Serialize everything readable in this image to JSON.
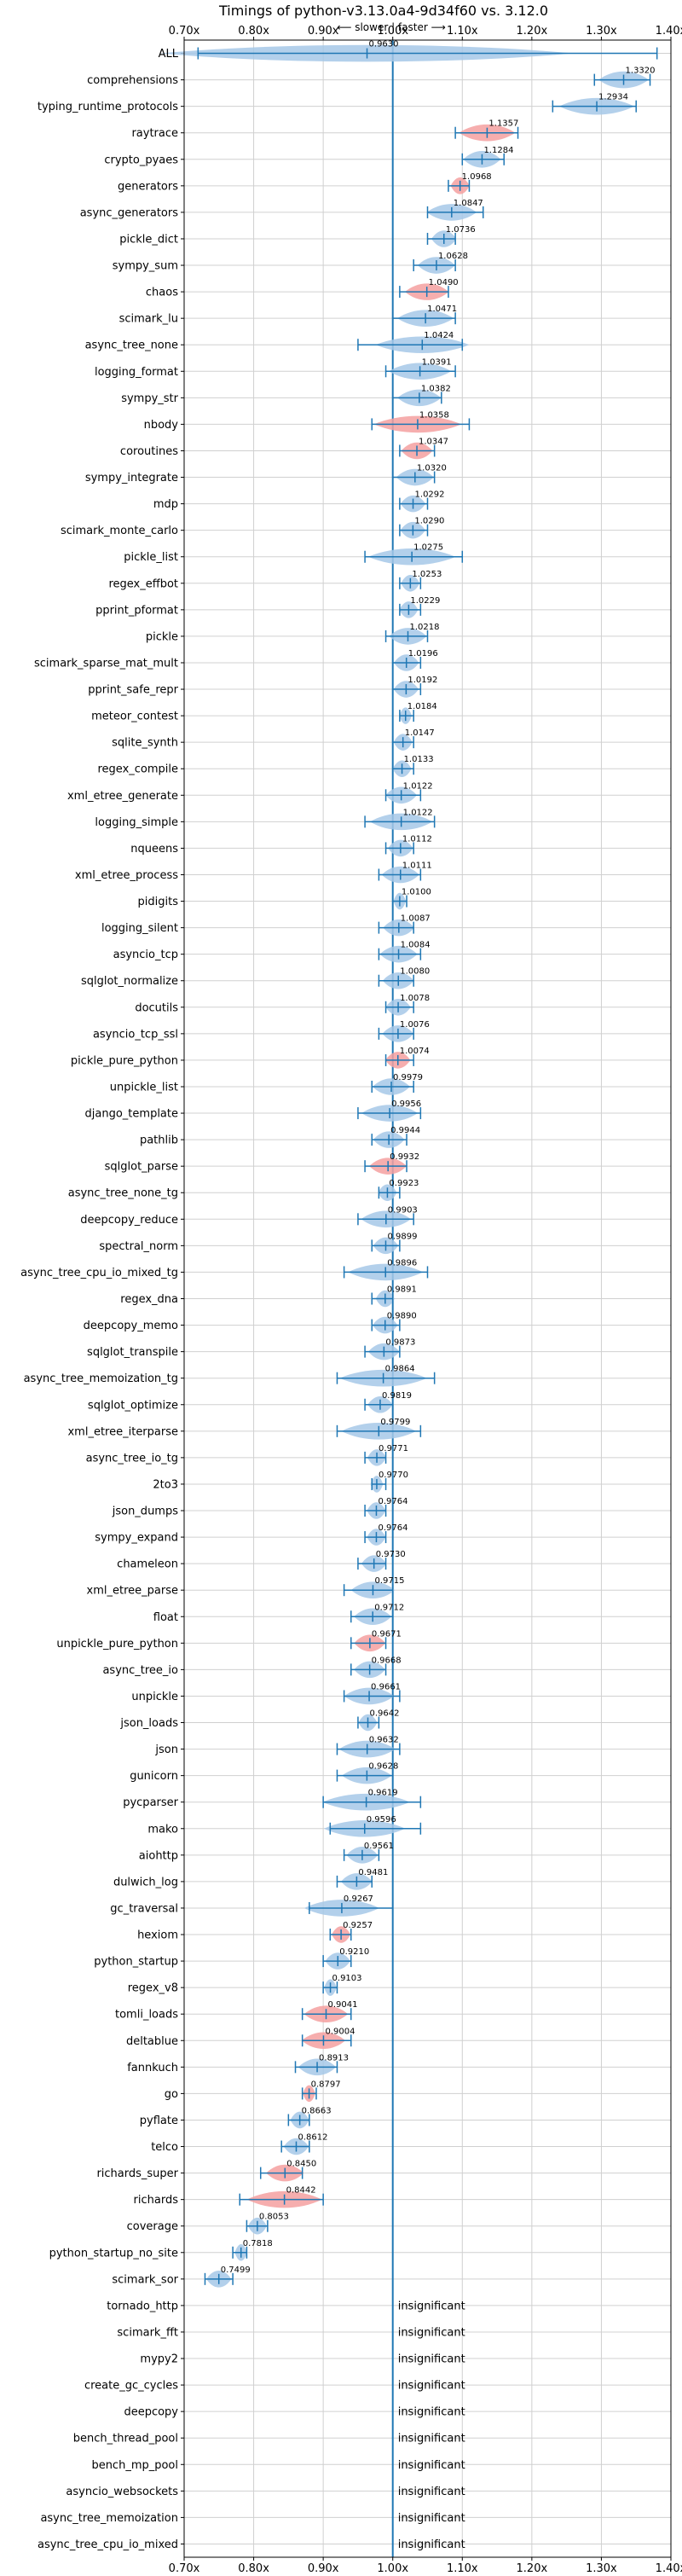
{
  "chart_data": {
    "type": "violin",
    "title": "Timings of python-v3.13.0a4-9d34f60 vs. 3.12.0",
    "direction_label": "⟵ slower | faster ⟶",
    "xlim": [
      0.7,
      1.4
    ],
    "xticks": [
      "0.70x",
      "0.80x",
      "0.90x",
      "1.00x",
      "1.10x",
      "1.20x",
      "1.30x",
      "1.40x"
    ],
    "xtick_values": [
      0.7,
      0.8,
      0.9,
      1.0,
      1.1,
      1.2,
      1.3,
      1.4
    ],
    "grid": true,
    "colors": {
      "faster": "#1f77b4",
      "slower_fill": "#f4a0a0",
      "violin_fill": "#a6c8e8",
      "reference": "#1f77b4"
    },
    "insignificant_text": "insignificant",
    "benchmarks": [
      {
        "name": "ALL",
        "value": 0.963,
        "label": "0.9630",
        "min": 0.72,
        "max": 1.38,
        "slower": false
      },
      {
        "name": "comprehensions",
        "value": 1.332,
        "label": "1.3320",
        "min": 1.29,
        "max": 1.37,
        "slower": false
      },
      {
        "name": "typing_runtime_protocols",
        "value": 1.2934,
        "label": "1.2934",
        "min": 1.23,
        "max": 1.35,
        "slower": false
      },
      {
        "name": "raytrace",
        "value": 1.1357,
        "label": "1.1357",
        "min": 1.09,
        "max": 1.18,
        "slower": true
      },
      {
        "name": "crypto_pyaes",
        "value": 1.1284,
        "label": "1.1284",
        "min": 1.1,
        "max": 1.16,
        "slower": false
      },
      {
        "name": "generators",
        "value": 1.0968,
        "label": "1.0968",
        "min": 1.08,
        "max": 1.11,
        "slower": true
      },
      {
        "name": "async_generators",
        "value": 1.0847,
        "label": "1.0847",
        "min": 1.05,
        "max": 1.13,
        "slower": false
      },
      {
        "name": "pickle_dict",
        "value": 1.0736,
        "label": "1.0736",
        "min": 1.05,
        "max": 1.09,
        "slower": false
      },
      {
        "name": "sympy_sum",
        "value": 1.0628,
        "label": "1.0628",
        "min": 1.03,
        "max": 1.09,
        "slower": false
      },
      {
        "name": "chaos",
        "value": 1.049,
        "label": "1.0490",
        "min": 1.01,
        "max": 1.08,
        "slower": true
      },
      {
        "name": "scimark_lu",
        "value": 1.0471,
        "label": "1.0471",
        "min": 1.0,
        "max": 1.09,
        "slower": false
      },
      {
        "name": "async_tree_none",
        "value": 1.0424,
        "label": "1.0424",
        "min": 0.95,
        "max": 1.1,
        "slower": false
      },
      {
        "name": "logging_format",
        "value": 1.0391,
        "label": "1.0391",
        "min": 0.99,
        "max": 1.09,
        "slower": false
      },
      {
        "name": "sympy_str",
        "value": 1.0382,
        "label": "1.0382",
        "min": 1.0,
        "max": 1.07,
        "slower": false
      },
      {
        "name": "nbody",
        "value": 1.0358,
        "label": "1.0358",
        "min": 0.97,
        "max": 1.11,
        "slower": true
      },
      {
        "name": "coroutines",
        "value": 1.0347,
        "label": "1.0347",
        "min": 1.01,
        "max": 1.06,
        "slower": true
      },
      {
        "name": "sympy_integrate",
        "value": 1.032,
        "label": "1.0320",
        "min": 1.0,
        "max": 1.06,
        "slower": false
      },
      {
        "name": "mdp",
        "value": 1.0292,
        "label": "1.0292",
        "min": 1.01,
        "max": 1.05,
        "slower": false
      },
      {
        "name": "scimark_monte_carlo",
        "value": 1.029,
        "label": "1.0290",
        "min": 1.01,
        "max": 1.05,
        "slower": false
      },
      {
        "name": "pickle_list",
        "value": 1.0275,
        "label": "1.0275",
        "min": 0.96,
        "max": 1.1,
        "slower": false
      },
      {
        "name": "regex_effbot",
        "value": 1.0253,
        "label": "1.0253",
        "min": 1.01,
        "max": 1.04,
        "slower": false
      },
      {
        "name": "pprint_pformat",
        "value": 1.0229,
        "label": "1.0229",
        "min": 1.01,
        "max": 1.04,
        "slower": false
      },
      {
        "name": "pickle",
        "value": 1.0218,
        "label": "1.0218",
        "min": 0.99,
        "max": 1.05,
        "slower": false
      },
      {
        "name": "scimark_sparse_mat_mult",
        "value": 1.0196,
        "label": "1.0196",
        "min": 1.0,
        "max": 1.04,
        "slower": false
      },
      {
        "name": "pprint_safe_repr",
        "value": 1.0192,
        "label": "1.0192",
        "min": 1.0,
        "max": 1.04,
        "slower": false
      },
      {
        "name": "meteor_contest",
        "value": 1.0184,
        "label": "1.0184",
        "min": 1.01,
        "max": 1.03,
        "slower": false
      },
      {
        "name": "sqlite_synth",
        "value": 1.0147,
        "label": "1.0147",
        "min": 1.0,
        "max": 1.03,
        "slower": false
      },
      {
        "name": "regex_compile",
        "value": 1.0133,
        "label": "1.0133",
        "min": 1.0,
        "max": 1.03,
        "slower": false
      },
      {
        "name": "xml_etree_generate",
        "value": 1.0122,
        "label": "1.0122",
        "min": 0.99,
        "max": 1.04,
        "slower": false
      },
      {
        "name": "logging_simple",
        "value": 1.0122,
        "label": "1.0122",
        "min": 0.96,
        "max": 1.06,
        "slower": false
      },
      {
        "name": "nqueens",
        "value": 1.0112,
        "label": "1.0112",
        "min": 0.99,
        "max": 1.03,
        "slower": false
      },
      {
        "name": "xml_etree_process",
        "value": 1.0111,
        "label": "1.0111",
        "min": 0.98,
        "max": 1.04,
        "slower": false
      },
      {
        "name": "pidigits",
        "value": 1.01,
        "label": "1.0100",
        "min": 1.0,
        "max": 1.02,
        "slower": false
      },
      {
        "name": "logging_silent",
        "value": 1.0087,
        "label": "1.0087",
        "min": 0.98,
        "max": 1.03,
        "slower": false
      },
      {
        "name": "asyncio_tcp",
        "value": 1.0084,
        "label": "1.0084",
        "min": 0.98,
        "max": 1.04,
        "slower": false
      },
      {
        "name": "sqlglot_normalize",
        "value": 1.008,
        "label": "1.0080",
        "min": 0.98,
        "max": 1.03,
        "slower": false
      },
      {
        "name": "docutils",
        "value": 1.0078,
        "label": "1.0078",
        "min": 0.99,
        "max": 1.03,
        "slower": false
      },
      {
        "name": "asyncio_tcp_ssl",
        "value": 1.0076,
        "label": "1.0076",
        "min": 0.98,
        "max": 1.03,
        "slower": false
      },
      {
        "name": "pickle_pure_python",
        "value": 1.0074,
        "label": "1.0074",
        "min": 0.99,
        "max": 1.03,
        "slower": true
      },
      {
        "name": "unpickle_list",
        "value": 0.9979,
        "label": "0.9979",
        "min": 0.97,
        "max": 1.03,
        "slower": false
      },
      {
        "name": "django_template",
        "value": 0.9956,
        "label": "0.9956",
        "min": 0.95,
        "max": 1.04,
        "slower": false
      },
      {
        "name": "pathlib",
        "value": 0.9944,
        "label": "0.9944",
        "min": 0.97,
        "max": 1.02,
        "slower": false
      },
      {
        "name": "sqlglot_parse",
        "value": 0.9932,
        "label": "0.9932",
        "min": 0.96,
        "max": 1.02,
        "slower": true
      },
      {
        "name": "async_tree_none_tg",
        "value": 0.9923,
        "label": "0.9923",
        "min": 0.98,
        "max": 1.01,
        "slower": false
      },
      {
        "name": "deepcopy_reduce",
        "value": 0.9903,
        "label": "0.9903",
        "min": 0.95,
        "max": 1.03,
        "slower": false
      },
      {
        "name": "spectral_norm",
        "value": 0.9899,
        "label": "0.9899",
        "min": 0.97,
        "max": 1.01,
        "slower": false
      },
      {
        "name": "async_tree_cpu_io_mixed_tg",
        "value": 0.9896,
        "label": "0.9896",
        "min": 0.93,
        "max": 1.05,
        "slower": false
      },
      {
        "name": "regex_dna",
        "value": 0.9891,
        "label": "0.9891",
        "min": 0.97,
        "max": 1.0,
        "slower": false
      },
      {
        "name": "deepcopy_memo",
        "value": 0.989,
        "label": "0.9890",
        "min": 0.97,
        "max": 1.01,
        "slower": false
      },
      {
        "name": "sqlglot_transpile",
        "value": 0.9873,
        "label": "0.9873",
        "min": 0.96,
        "max": 1.01,
        "slower": false
      },
      {
        "name": "async_tree_memoization_tg",
        "value": 0.9864,
        "label": "0.9864",
        "min": 0.92,
        "max": 1.06,
        "slower": false
      },
      {
        "name": "sqlglot_optimize",
        "value": 0.9819,
        "label": "0.9819",
        "min": 0.96,
        "max": 1.0,
        "slower": false
      },
      {
        "name": "xml_etree_iterparse",
        "value": 0.9799,
        "label": "0.9799",
        "min": 0.92,
        "max": 1.04,
        "slower": false
      },
      {
        "name": "async_tree_io_tg",
        "value": 0.9771,
        "label": "0.9771",
        "min": 0.96,
        "max": 0.99,
        "slower": false
      },
      {
        "name": "2to3",
        "value": 0.977,
        "label": "0.9770",
        "min": 0.97,
        "max": 0.99,
        "slower": false
      },
      {
        "name": "json_dumps",
        "value": 0.9764,
        "label": "0.9764",
        "min": 0.96,
        "max": 0.99,
        "slower": false
      },
      {
        "name": "sympy_expand",
        "value": 0.9764,
        "label": "0.9764",
        "min": 0.96,
        "max": 0.99,
        "slower": false
      },
      {
        "name": "chameleon",
        "value": 0.973,
        "label": "0.9730",
        "min": 0.95,
        "max": 0.99,
        "slower": false
      },
      {
        "name": "xml_etree_parse",
        "value": 0.9715,
        "label": "0.9715",
        "min": 0.93,
        "max": 1.0,
        "slower": false
      },
      {
        "name": "float",
        "value": 0.9712,
        "label": "0.9712",
        "min": 0.94,
        "max": 1.0,
        "slower": false
      },
      {
        "name": "unpickle_pure_python",
        "value": 0.9671,
        "label": "0.9671",
        "min": 0.94,
        "max": 0.99,
        "slower": true
      },
      {
        "name": "async_tree_io",
        "value": 0.9668,
        "label": "0.9668",
        "min": 0.94,
        "max": 0.99,
        "slower": false
      },
      {
        "name": "unpickle",
        "value": 0.9661,
        "label": "0.9661",
        "min": 0.93,
        "max": 1.01,
        "slower": false
      },
      {
        "name": "json_loads",
        "value": 0.9642,
        "label": "0.9642",
        "min": 0.95,
        "max": 0.98,
        "slower": false
      },
      {
        "name": "json",
        "value": 0.9632,
        "label": "0.9632",
        "min": 0.92,
        "max": 1.01,
        "slower": false
      },
      {
        "name": "gunicorn",
        "value": 0.9628,
        "label": "0.9628",
        "min": 0.92,
        "max": 1.0,
        "slower": false
      },
      {
        "name": "pycparser",
        "value": 0.9619,
        "label": "0.9619",
        "min": 0.9,
        "max": 1.04,
        "slower": false
      },
      {
        "name": "mako",
        "value": 0.9596,
        "label": "0.9596",
        "min": 0.91,
        "max": 1.04,
        "slower": false
      },
      {
        "name": "aiohttp",
        "value": 0.9561,
        "label": "0.9561",
        "min": 0.93,
        "max": 0.98,
        "slower": false
      },
      {
        "name": "dulwich_log",
        "value": 0.9481,
        "label": "0.9481",
        "min": 0.92,
        "max": 0.97,
        "slower": false
      },
      {
        "name": "gc_traversal",
        "value": 0.9267,
        "label": "0.9267",
        "min": 0.88,
        "max": 1.0,
        "slower": false
      },
      {
        "name": "hexiom",
        "value": 0.9257,
        "label": "0.9257",
        "min": 0.91,
        "max": 0.94,
        "slower": true
      },
      {
        "name": "python_startup",
        "value": 0.921,
        "label": "0.9210",
        "min": 0.9,
        "max": 0.94,
        "slower": false
      },
      {
        "name": "regex_v8",
        "value": 0.9103,
        "label": "0.9103",
        "min": 0.9,
        "max": 0.92,
        "slower": false
      },
      {
        "name": "tomli_loads",
        "value": 0.9041,
        "label": "0.9041",
        "min": 0.87,
        "max": 0.94,
        "slower": true
      },
      {
        "name": "deltablue",
        "value": 0.9004,
        "label": "0.9004",
        "min": 0.87,
        "max": 0.94,
        "slower": true
      },
      {
        "name": "fannkuch",
        "value": 0.8913,
        "label": "0.8913",
        "min": 0.86,
        "max": 0.92,
        "slower": false
      },
      {
        "name": "go",
        "value": 0.8797,
        "label": "0.8797",
        "min": 0.87,
        "max": 0.89,
        "slower": true
      },
      {
        "name": "pyflate",
        "value": 0.8663,
        "label": "0.8663",
        "min": 0.85,
        "max": 0.88,
        "slower": false
      },
      {
        "name": "telco",
        "value": 0.8612,
        "label": "0.8612",
        "min": 0.84,
        "max": 0.88,
        "slower": false
      },
      {
        "name": "richards_super",
        "value": 0.845,
        "label": "0.8450",
        "min": 0.81,
        "max": 0.87,
        "slower": true
      },
      {
        "name": "richards",
        "value": 0.8442,
        "label": "0.8442",
        "min": 0.78,
        "max": 0.9,
        "slower": true
      },
      {
        "name": "coverage",
        "value": 0.8053,
        "label": "0.8053",
        "min": 0.79,
        "max": 0.82,
        "slower": false
      },
      {
        "name": "python_startup_no_site",
        "value": 0.7818,
        "label": "0.7818",
        "min": 0.77,
        "max": 0.79,
        "slower": false
      },
      {
        "name": "scimark_sor",
        "value": 0.7499,
        "label": "0.7499",
        "min": 0.73,
        "max": 0.77,
        "slower": false
      },
      {
        "name": "tornado_http",
        "insignificant": true
      },
      {
        "name": "scimark_fft",
        "insignificant": true
      },
      {
        "name": "mypy2",
        "insignificant": true
      },
      {
        "name": "create_gc_cycles",
        "insignificant": true
      },
      {
        "name": "deepcopy",
        "insignificant": true
      },
      {
        "name": "bench_thread_pool",
        "insignificant": true
      },
      {
        "name": "bench_mp_pool",
        "insignificant": true
      },
      {
        "name": "asyncio_websockets",
        "insignificant": true
      },
      {
        "name": "async_tree_memoization",
        "insignificant": true
      },
      {
        "name": "async_tree_cpu_io_mixed",
        "insignificant": true
      }
    ]
  }
}
